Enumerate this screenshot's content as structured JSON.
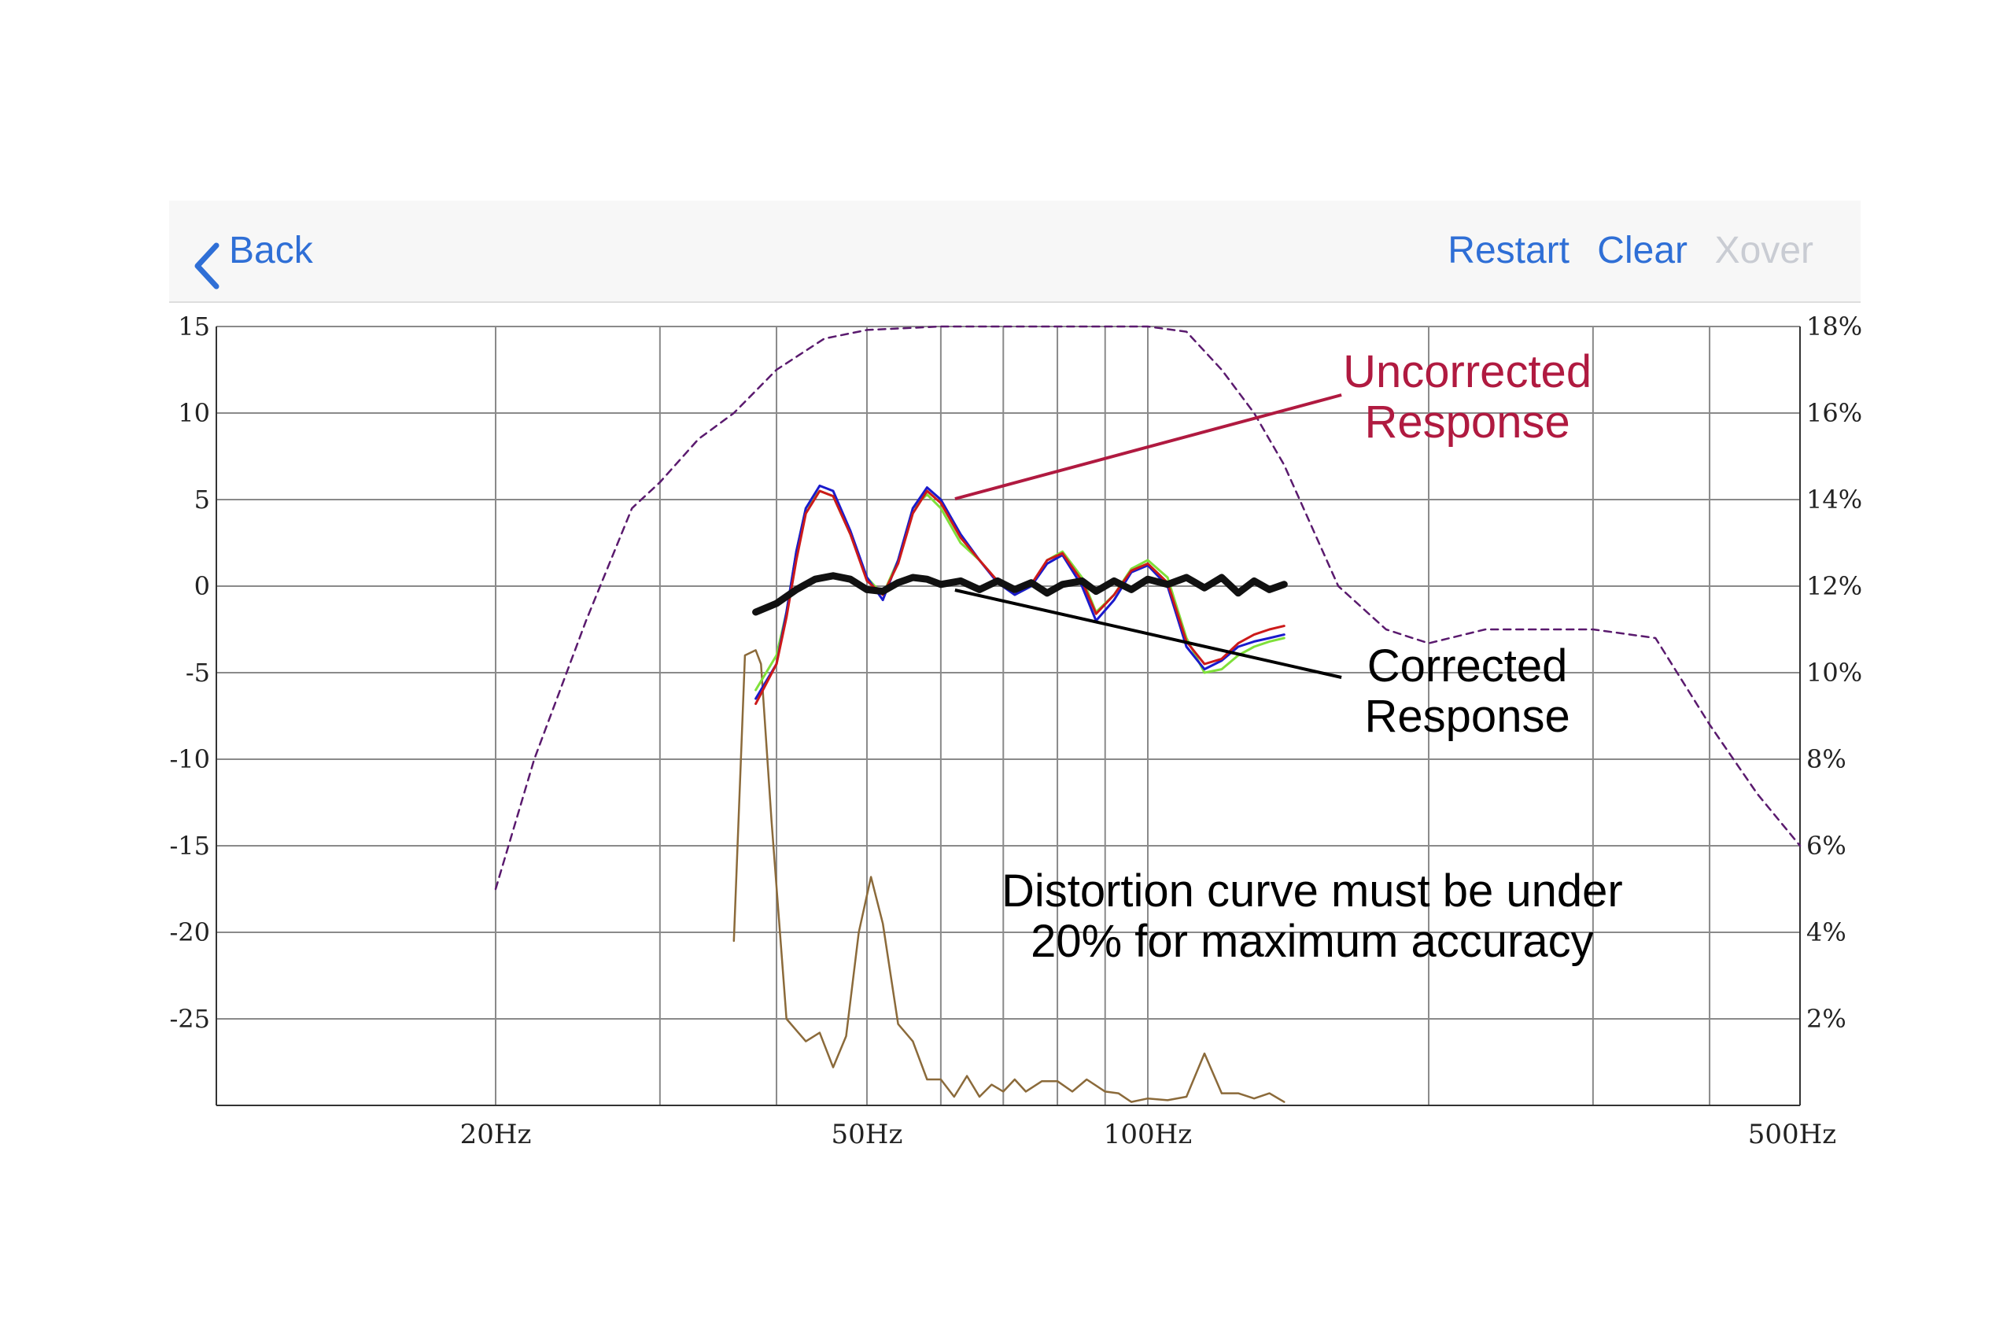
{
  "nav": {
    "back_label": "Back",
    "restart_label": "Restart",
    "clear_label": "Clear",
    "xover_label": "Xover",
    "accent_color": "#2f6fd6",
    "disabled_color": "#c9ccd3",
    "back_icon": "chevron-left-icon"
  },
  "chart_data": {
    "type": "line",
    "x_scale": "log",
    "xlim": [
      12,
      500
    ],
    "ylim": [
      -30,
      15
    ],
    "y2lim": [
      0,
      18
    ],
    "grid": true,
    "x_ticks": [
      {
        "value": 20,
        "label": "20Hz"
      },
      {
        "value": 50,
        "label": "50Hz"
      },
      {
        "value": 100,
        "label": "100Hz"
      },
      {
        "value": 500,
        "label": "500Hz"
      }
    ],
    "x_gridlines": [
      20,
      30,
      40,
      50,
      60,
      70,
      80,
      90,
      100,
      200,
      300,
      400,
      500
    ],
    "y_ticks": [
      {
        "value": 15,
        "label": "15"
      },
      {
        "value": 10,
        "label": "10"
      },
      {
        "value": 5,
        "label": "5"
      },
      {
        "value": 0,
        "label": "0"
      },
      {
        "value": -5,
        "label": "-5"
      },
      {
        "value": -10,
        "label": "-10"
      },
      {
        "value": -15,
        "label": "-15"
      },
      {
        "value": -20,
        "label": "-20"
      },
      {
        "value": -25,
        "label": "-25"
      }
    ],
    "y2_ticks": [
      {
        "value": 18,
        "label": "18%"
      },
      {
        "value": 16,
        "label": "16%"
      },
      {
        "value": 14,
        "label": "14%"
      },
      {
        "value": 12,
        "label": "12%"
      },
      {
        "value": 10,
        "label": "10%"
      },
      {
        "value": 8,
        "label": "8%"
      },
      {
        "value": 6,
        "label": "6%"
      },
      {
        "value": 4,
        "label": "4%"
      },
      {
        "value": 2,
        "label": "2%"
      }
    ],
    "series": [
      {
        "color": "#5a1a6e",
        "style": "dashed",
        "axis": "left",
        "width": 2.5,
        "x": [
          20,
          22,
          25,
          28,
          30,
          33,
          36,
          40,
          45,
          50,
          60,
          70,
          80,
          90,
          100,
          110,
          120,
          130,
          140,
          160,
          180,
          200,
          230,
          260,
          300,
          350,
          400,
          450,
          500
        ],
        "y": [
          -17.5,
          -10,
          -2,
          4.5,
          6,
          8.5,
          10,
          12.5,
          14.3,
          14.8,
          15,
          15,
          15,
          15,
          15,
          14.7,
          12.5,
          10,
          7,
          0,
          -2.5,
          -3.3,
          -2.5,
          -2.5,
          -2.5,
          -3,
          -8,
          -12,
          -15
        ]
      },
      {
        "color": "#8b6a3a",
        "style": "solid",
        "axis": "left",
        "width": 2.5,
        "x": [
          36,
          37,
          38,
          38.5,
          39.5,
          41,
          43,
          44.5,
          46,
          47.5,
          49,
          50.5,
          52,
          54,
          56,
          58,
          60,
          62,
          64,
          66,
          68,
          70,
          72,
          74,
          77,
          80,
          83,
          86,
          90,
          93,
          96,
          100,
          105,
          110,
          115,
          120,
          125,
          130,
          135,
          140
        ],
        "y": [
          -20.5,
          -4,
          -3.7,
          -4.5,
          -13.5,
          -25,
          -26.3,
          -25.8,
          -27.8,
          -26,
          -20,
          -16.8,
          -19.5,
          -25.3,
          -26.3,
          -28.5,
          -28.5,
          -29.5,
          -28.3,
          -29.5,
          -28.8,
          -29.2,
          -28.5,
          -29.2,
          -28.6,
          -28.6,
          -29.2,
          -28.5,
          -29.2,
          -29.3,
          -29.8,
          -29.6,
          -29.7,
          -29.5,
          -27,
          -29.3,
          -29.3,
          -29.6,
          -29.3,
          -29.8
        ]
      },
      {
        "color": "#7fe03a",
        "style": "solid",
        "axis": "left",
        "width": 3,
        "x": [
          38,
          40,
          41,
          42,
          43,
          44.5,
          46,
          48,
          50,
          52,
          54,
          56,
          58,
          60,
          63,
          66,
          69,
          72,
          75,
          78,
          81,
          85,
          88,
          92,
          96,
          100,
          105,
          110,
          115,
          120,
          125,
          130,
          135,
          140
        ],
        "y": [
          -6,
          -4,
          -1.5,
          2,
          4.5,
          5.5,
          5.2,
          3,
          0.5,
          -0.5,
          1.5,
          4.5,
          5.3,
          4.5,
          2.5,
          1.5,
          0.3,
          -0.5,
          0,
          1.5,
          2,
          0.5,
          -1.5,
          -0.5,
          1,
          1.5,
          0.5,
          -3,
          -5,
          -4.8,
          -4,
          -3.5,
          -3.2,
          -3
        ]
      },
      {
        "color": "#1a1acc",
        "style": "solid",
        "axis": "left",
        "width": 3,
        "x": [
          38,
          40,
          41,
          42,
          43,
          44.5,
          46,
          48,
          50,
          52,
          54,
          56,
          58,
          60,
          63,
          66,
          69,
          72,
          75,
          78,
          81,
          85,
          88,
          92,
          96,
          100,
          105,
          110,
          115,
          120,
          125,
          130,
          135,
          140
        ],
        "y": [
          -6.5,
          -4.5,
          -1.5,
          2,
          4.5,
          5.8,
          5.5,
          3.2,
          0.5,
          -0.8,
          1.5,
          4.5,
          5.7,
          5,
          3,
          1.5,
          0.2,
          -0.5,
          0,
          1.3,
          1.8,
          0,
          -2,
          -0.8,
          0.8,
          1.2,
          0,
          -3.5,
          -4.8,
          -4.3,
          -3.5,
          -3.2,
          -3,
          -2.8
        ]
      },
      {
        "color": "#cc1a1a",
        "style": "solid",
        "axis": "left",
        "width": 3,
        "x": [
          38,
          40,
          41,
          42,
          43,
          44.5,
          46,
          48,
          50,
          52,
          54,
          56,
          58,
          60,
          63,
          66,
          69,
          72,
          75,
          78,
          81,
          85,
          88,
          92,
          96,
          100,
          105,
          110,
          115,
          120,
          125,
          130,
          135,
          140
        ],
        "y": [
          -6.8,
          -4.5,
          -1.8,
          1.5,
          4.2,
          5.5,
          5.2,
          3,
          0.3,
          -0.5,
          1.3,
          4.2,
          5.5,
          4.8,
          2.8,
          1.5,
          0.3,
          -0.3,
          0.1,
          1.5,
          1.9,
          0.3,
          -1.6,
          -0.5,
          0.9,
          1.3,
          0.2,
          -3.2,
          -4.5,
          -4.2,
          -3.3,
          -2.8,
          -2.5,
          -2.3
        ]
      },
      {
        "color": "#111111",
        "style": "solid",
        "axis": "left",
        "width": 9,
        "x": [
          38,
          40,
          42,
          44,
          46,
          48,
          50,
          52,
          54,
          56,
          58,
          60,
          63,
          66,
          69,
          72,
          75,
          78,
          81,
          85,
          88,
          92,
          96,
          100,
          105,
          110,
          115,
          120,
          125,
          130,
          135,
          140
        ],
        "y": [
          -1.5,
          -1,
          -0.2,
          0.4,
          0.6,
          0.4,
          -0.2,
          -0.3,
          0.2,
          0.5,
          0.4,
          0.1,
          0.3,
          -0.2,
          0.3,
          -0.2,
          0.2,
          -0.4,
          0.1,
          0.3,
          -0.3,
          0.3,
          -0.2,
          0.4,
          0.1,
          0.5,
          -0.1,
          0.5,
          -0.4,
          0.3,
          -0.2,
          0.1
        ]
      }
    ],
    "annotations": [
      {
        "lines": [
          "Uncorrected",
          "Response"
        ],
        "color": "#b01a40",
        "arrow_to": [
          60,
          5.5
        ],
        "text_at": [
          220,
          11.5
        ]
      },
      {
        "lines": [
          "Corrected",
          "Response"
        ],
        "color": "#000000",
        "arrow_to": [
          60,
          0
        ],
        "text_at": [
          220,
          -5.5
        ]
      },
      {
        "lines": [
          "Distortion curve must be under",
          "20% for maximum accuracy"
        ],
        "color": "#000000",
        "text_at": [
          150,
          -18.5
        ]
      }
    ]
  }
}
